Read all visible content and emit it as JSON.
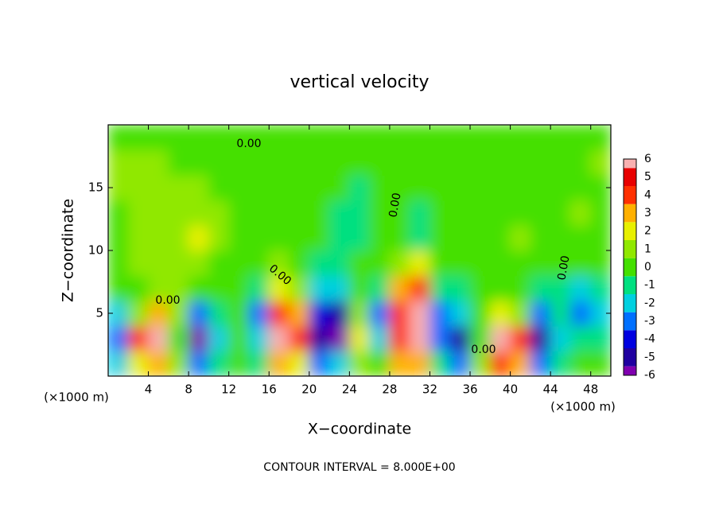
{
  "chart_data": {
    "type": "heatmap",
    "title": "vertical velocity",
    "xlabel": "X−coordinate",
    "ylabel": "Z−coordinate",
    "x_unit_label": "(×1000 m)",
    "y_unit_label": "(×1000 m)",
    "footer": "CONTOUR INTERVAL = 8.000E+00",
    "contour_label": "0.00",
    "x": [
      1,
      3,
      5,
      7,
      9,
      11,
      13,
      15,
      17,
      19,
      21,
      23,
      25,
      27,
      29,
      31,
      33,
      35,
      37,
      39,
      41,
      43,
      45,
      47,
      49
    ],
    "z": [
      1,
      3,
      5,
      7,
      9,
      11,
      13,
      15,
      17,
      19
    ],
    "values": [
      [
        -2,
        2,
        3,
        1,
        -3,
        -1,
        0,
        -1,
        3,
        2,
        -3,
        -2,
        1,
        0,
        3,
        3,
        -1,
        -3,
        1,
        4,
        3,
        -3,
        -1,
        0,
        0
      ],
      [
        -3,
        4,
        6,
        0,
        -6,
        -2,
        0,
        -2,
        6,
        4,
        -5,
        -6,
        2,
        -2,
        4,
        6,
        -3,
        -5,
        0,
        6,
        4,
        -5,
        -2,
        -1,
        -1
      ],
      [
        -2,
        1,
        3,
        1,
        -3,
        -1,
        0,
        -3,
        4,
        3,
        -4,
        -5,
        1,
        -3,
        4,
        6,
        -3,
        -2,
        0,
        2,
        1,
        -3,
        -1,
        -3,
        -2
      ],
      [
        0,
        0,
        1,
        1,
        0,
        0,
        0,
        -1,
        2,
        1,
        -2,
        -2,
        0,
        -1,
        3,
        4,
        -1,
        -1,
        0,
        0,
        0,
        -1,
        -1,
        -2,
        -1
      ],
      [
        0,
        1,
        1,
        1,
        1,
        0,
        0,
        0,
        1,
        0,
        -1,
        -1,
        0,
        0,
        1,
        2,
        0,
        0,
        0,
        0,
        0,
        0,
        0,
        0,
        0
      ],
      [
        0,
        1,
        1,
        1,
        2,
        1,
        0,
        0,
        0,
        0,
        0,
        -1,
        -1,
        0,
        0,
        -1,
        0,
        0,
        0,
        0,
        1,
        0,
        0,
        0,
        0
      ],
      [
        0,
        1,
        1,
        1,
        1,
        1,
        0,
        0,
        0,
        0,
        0,
        -1,
        -1,
        0,
        0,
        -1,
        0,
        0,
        0,
        0,
        0,
        0,
        0,
        1,
        0
      ],
      [
        1,
        1,
        1,
        1,
        1,
        0,
        0,
        0,
        0,
        0,
        0,
        0,
        -1,
        0,
        0,
        0,
        0,
        0,
        0,
        0,
        0,
        0,
        0,
        0,
        0
      ],
      [
        1,
        1,
        1,
        0,
        0,
        0,
        0,
        0,
        0,
        0,
        0,
        0,
        0,
        0,
        0,
        0,
        0,
        0,
        0,
        0,
        0,
        0,
        0,
        0,
        1
      ],
      [
        0,
        0,
        0,
        0,
        0,
        0,
        0,
        0,
        0,
        0,
        0,
        0,
        0,
        0,
        0,
        0,
        0,
        0,
        0,
        0,
        0,
        0,
        0,
        0,
        0
      ]
    ],
    "xlim": [
      0,
      50
    ],
    "ylim": [
      0,
      20
    ],
    "xticks": [
      4,
      8,
      12,
      16,
      20,
      24,
      28,
      32,
      36,
      40,
      44,
      48
    ],
    "yticks": [
      5,
      10,
      15
    ],
    "levels": [
      -6,
      -5,
      -4,
      -3,
      -2,
      -1,
      0,
      1,
      2,
      3,
      4,
      5,
      6
    ],
    "colors": [
      "#8000b0",
      "#2000a0",
      "#0000e0",
      "#0070ff",
      "#00d0e0",
      "#00e080",
      "#44e000",
      "#90e800",
      "#e8f000",
      "#ffb000",
      "#ff3000",
      "#e80000",
      "#f8b0b0"
    ]
  }
}
